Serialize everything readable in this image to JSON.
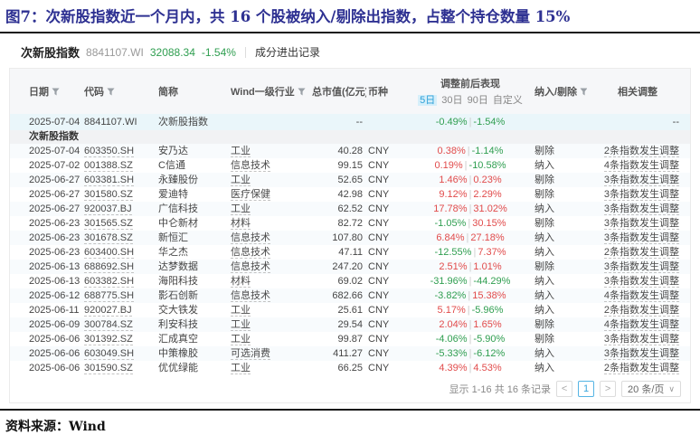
{
  "figure": {
    "title": "图7：次新股指数近一个月内，共 16 个股被纳入/剔除出指数，占整个持仓数量 15%",
    "source": "资料来源：Wind"
  },
  "widget": {
    "index_name": "次新股指数",
    "index_code": "8841107.WI",
    "index_value": "32088.34",
    "index_change": "-1.54%",
    "tab_label": "成分进出记录"
  },
  "table": {
    "headers": {
      "date": "日期",
      "code": "代码",
      "name": "简称",
      "industry": "Wind一级行业",
      "market_cap": "总市值(亿元)",
      "currency": "币种",
      "performance": "调整前后表现",
      "inclusion": "纳入/剔除",
      "related": "相关调整"
    },
    "perf_tabs": {
      "d5": "5日",
      "d30": "30日",
      "d90": "90日",
      "custom": "自定义",
      "active": "5日"
    },
    "perf_separator": "|",
    "index_row": {
      "date": "2025-07-04",
      "code": "8841107.WI",
      "name": "次新股指数",
      "market_cap": "--",
      "perf5": "-0.49%",
      "perf30": "-1.54%",
      "related": "--"
    },
    "section_label": "次新股指数",
    "rows": [
      {
        "date": "2025-07-04",
        "code": "603350.SH",
        "name": "安乃达",
        "industry": "工业",
        "market_cap": "40.28",
        "currency": "CNY",
        "perf5": "0.38%",
        "perf30": "-1.14%",
        "action": "剔除",
        "related": "2条指数发生调整"
      },
      {
        "date": "2025-07-02",
        "code": "001388.SZ",
        "name": "C信通",
        "industry": "信息技术",
        "market_cap": "99.15",
        "currency": "CNY",
        "perf5": "0.19%",
        "perf30": "-10.58%",
        "action": "纳入",
        "related": "4条指数发生调整"
      },
      {
        "date": "2025-06-27",
        "code": "603381.SH",
        "name": "永臻股份",
        "industry": "工业",
        "market_cap": "52.65",
        "currency": "CNY",
        "perf5": "1.46%",
        "perf30": "0.23%",
        "action": "剔除",
        "related": "3条指数发生调整"
      },
      {
        "date": "2025-06-27",
        "code": "301580.SZ",
        "name": "爱迪特",
        "industry": "医疗保健",
        "market_cap": "42.98",
        "currency": "CNY",
        "perf5": "9.12%",
        "perf30": "2.29%",
        "action": "剔除",
        "related": "3条指数发生调整"
      },
      {
        "date": "2025-06-27",
        "code": "920037.BJ",
        "name": "广信科技",
        "industry": "工业",
        "market_cap": "62.52",
        "currency": "CNY",
        "perf5": "17.78%",
        "perf30": "31.02%",
        "action": "纳入",
        "related": "3条指数发生调整"
      },
      {
        "date": "2025-06-23",
        "code": "301565.SZ",
        "name": "中仑新材",
        "industry": "材料",
        "market_cap": "82.72",
        "currency": "CNY",
        "perf5": "-1.05%",
        "perf30": "30.15%",
        "action": "剔除",
        "related": "3条指数发生调整"
      },
      {
        "date": "2025-06-23",
        "code": "301678.SZ",
        "name": "新恒汇",
        "industry": "信息技术",
        "market_cap": "107.80",
        "currency": "CNY",
        "perf5": "6.84%",
        "perf30": "27.18%",
        "action": "纳入",
        "related": "3条指数发生调整"
      },
      {
        "date": "2025-06-23",
        "code": "603400.SH",
        "name": "华之杰",
        "industry": "信息技术",
        "market_cap": "47.11",
        "currency": "CNY",
        "perf5": "-12.55%",
        "perf30": "7.37%",
        "action": "纳入",
        "related": "2条指数发生调整"
      },
      {
        "date": "2025-06-13",
        "code": "688692.SH",
        "name": "达梦数据",
        "industry": "信息技术",
        "market_cap": "247.20",
        "currency": "CNY",
        "perf5": "2.51%",
        "perf30": "1.01%",
        "action": "剔除",
        "related": "3条指数发生调整"
      },
      {
        "date": "2025-06-13",
        "code": "603382.SH",
        "name": "海阳科技",
        "industry": "材料",
        "market_cap": "69.02",
        "currency": "CNY",
        "perf5": "-31.96%",
        "perf30": "-44.29%",
        "action": "纳入",
        "related": "3条指数发生调整"
      },
      {
        "date": "2025-06-12",
        "code": "688775.SH",
        "name": "影石创新",
        "industry": "信息技术",
        "market_cap": "682.66",
        "currency": "CNY",
        "perf5": "-3.82%",
        "perf30": "15.38%",
        "action": "纳入",
        "related": "4条指数发生调整"
      },
      {
        "date": "2025-06-11",
        "code": "920027.BJ",
        "name": "交大铁发",
        "industry": "工业",
        "market_cap": "25.61",
        "currency": "CNY",
        "perf5": "5.17%",
        "perf30": "-5.96%",
        "action": "纳入",
        "related": "2条指数发生调整"
      },
      {
        "date": "2025-06-09",
        "code": "300784.SZ",
        "name": "利安科技",
        "industry": "工业",
        "market_cap": "29.54",
        "currency": "CNY",
        "perf5": "2.04%",
        "perf30": "1.65%",
        "action": "剔除",
        "related": "4条指数发生调整"
      },
      {
        "date": "2025-06-06",
        "code": "301392.SZ",
        "name": "汇成真空",
        "industry": "工业",
        "market_cap": "99.87",
        "currency": "CNY",
        "perf5": "-4.06%",
        "perf30": "-5.90%",
        "action": "剔除",
        "related": "3条指数发生调整"
      },
      {
        "date": "2025-06-06",
        "code": "603049.SH",
        "name": "中策橡胶",
        "industry": "可选消费",
        "market_cap": "411.27",
        "currency": "CNY",
        "perf5": "-5.33%",
        "perf30": "-6.12%",
        "action": "纳入",
        "related": "3条指数发生调整"
      },
      {
        "date": "2025-06-06",
        "code": "301590.SZ",
        "name": "优优绿能",
        "industry": "工业",
        "market_cap": "66.25",
        "currency": "CNY",
        "perf5": "4.39%",
        "perf30": "4.53%",
        "action": "纳入",
        "related": "2条指数发生调整"
      }
    ]
  },
  "pagination": {
    "summary": "显示 1-16 共 16 条记录",
    "prev": "<",
    "page": "1",
    "next": ">",
    "page_size": "20 条/页",
    "chevron": "∨"
  },
  "colors": {
    "up_red": "#e14b4b",
    "down_green": "#2f9e50",
    "accent_blue": "#3aa6dc",
    "title_navy": "#2e3192"
  }
}
